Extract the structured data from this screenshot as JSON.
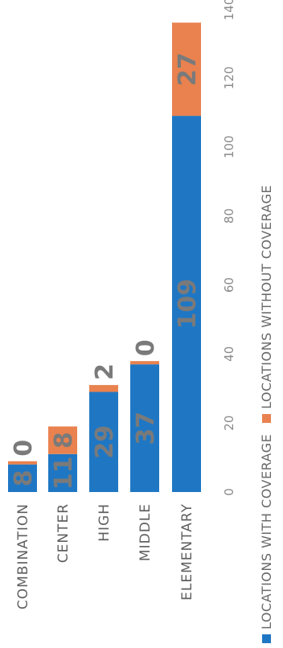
{
  "chart_data": {
    "type": "bar",
    "orientation": "horizontal",
    "stacked": true,
    "categories": [
      "COMBINATION",
      "CENTER",
      "HIGH",
      "MIDDLE",
      "ELEMENTARY"
    ],
    "series": [
      {
        "name": "LOCATIONS WITH COVERAGE",
        "values": [
          8,
          11,
          29,
          37,
          109
        ],
        "color": "#1f77c4"
      },
      {
        "name": "LOCATIONS WITHOUT COVERAGE",
        "values": [
          0,
          8,
          2,
          0,
          27
        ],
        "color": "#e9824f"
      }
    ],
    "value_labels": [
      {
        "inside": "8",
        "outside": "0"
      },
      {
        "inside": "11",
        "outside": "8"
      },
      {
        "inside": "29",
        "outside": "2"
      },
      {
        "inside": "37",
        "outside": "0"
      },
      {
        "inside": "109",
        "outside": "27"
      }
    ],
    "x_ticks": [
      "0",
      "20",
      "40",
      "60",
      "80",
      "100",
      "120",
      "140"
    ],
    "xlim": [
      0,
      140
    ],
    "grid": false,
    "legend_position": "bottom"
  },
  "legend": {
    "with_label": "LOCATIONS WITH COVERAGE",
    "without_label": "LOCATIONS WITHOUT COVERAGE"
  }
}
